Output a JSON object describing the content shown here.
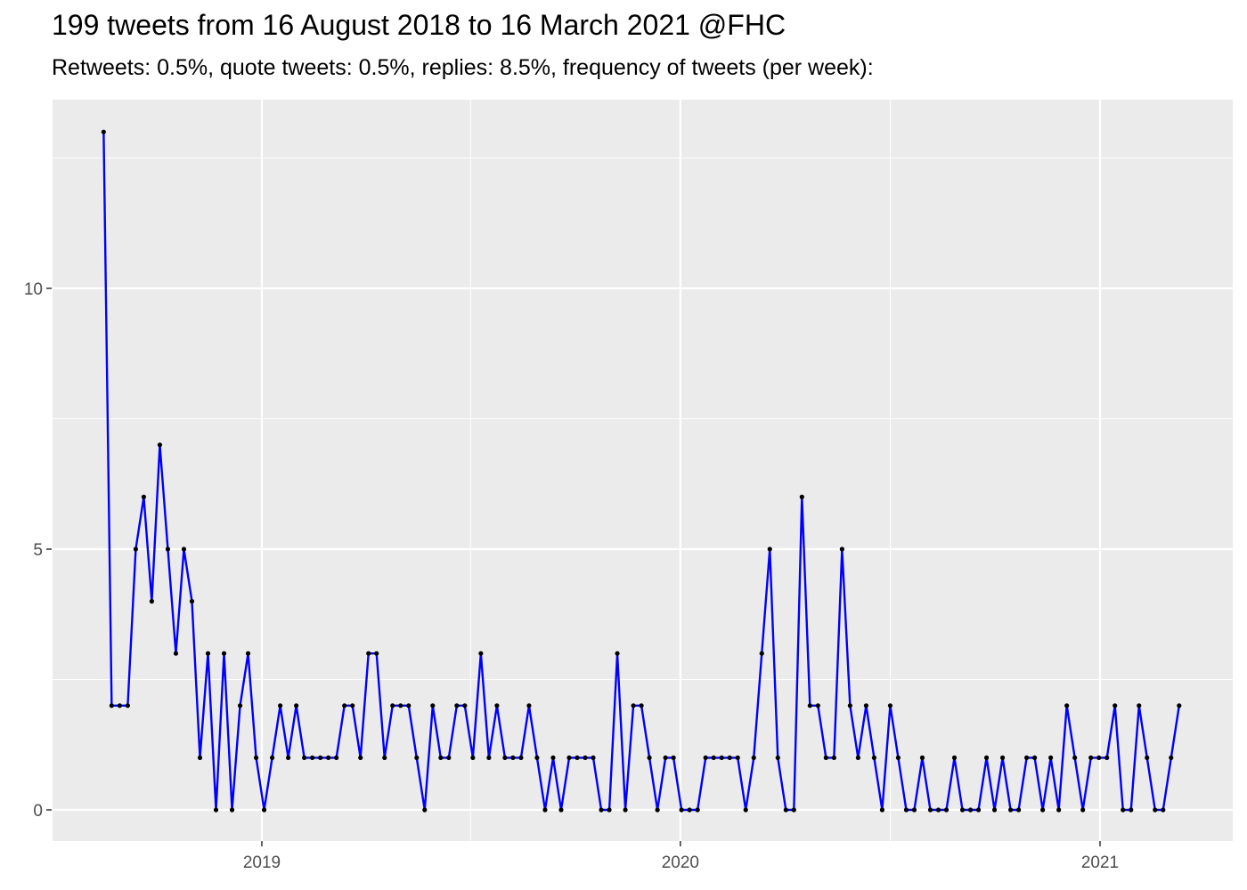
{
  "title": "199 tweets from 16 August 2018 to 16 March 2021 @FHC",
  "subtitle": "Retweets: 0.5%, quote tweets: 0.5%, replies: 8.5%, frequency of tweets (per week):",
  "colors": {
    "panel": "#ebebeb",
    "grid": "#ffffff",
    "line": "#0000ff",
    "point": "#000000",
    "tick_text": "#4d4d4d"
  },
  "chart_data": {
    "type": "line",
    "title": "199 tweets from 16 August 2018 to 16 March 2021 @FHC",
    "subtitle": "Retweets: 0.5%, quote tweets: 0.5%, replies: 8.5%, frequency of tweets (per week):",
    "xlabel": "",
    "ylabel": "",
    "x_start": "2018-08-16",
    "x_interval": "1 week",
    "x_ticks": [
      "2019",
      "2020",
      "2021"
    ],
    "y_ticks": [
      "0",
      "5",
      "10"
    ],
    "ylim": [
      -0.4,
      13.6
    ],
    "grid": true,
    "legend": "none",
    "series": [
      {
        "values": [
          13,
          2,
          2,
          2,
          5,
          6,
          4,
          7,
          5,
          3,
          5,
          4,
          1,
          3,
          0,
          3,
          0,
          2,
          3,
          1,
          0,
          1,
          2,
          1,
          2,
          1,
          1,
          1,
          1,
          1,
          2,
          2,
          1,
          3,
          3,
          1,
          2,
          2,
          2,
          1,
          0,
          2,
          1,
          1,
          2,
          2,
          1,
          3,
          1,
          2,
          1,
          1,
          1,
          2,
          1,
          0,
          1,
          0,
          1,
          1,
          1,
          1,
          0,
          0,
          3,
          0,
          2,
          2,
          1,
          0,
          1,
          1,
          0,
          0,
          0,
          1,
          1,
          1,
          1,
          1,
          0,
          1,
          3,
          5,
          1,
          0,
          0,
          6,
          2,
          2,
          1,
          1,
          5,
          2,
          1,
          2,
          1,
          0,
          2,
          1,
          0,
          0,
          1,
          0,
          0,
          0,
          1,
          0,
          0,
          0,
          1,
          0,
          1,
          0,
          0,
          1,
          1,
          0,
          1,
          0,
          2,
          1,
          0,
          1,
          1,
          1,
          2,
          0,
          0,
          2,
          1,
          0,
          0,
          1,
          2
        ]
      }
    ]
  }
}
